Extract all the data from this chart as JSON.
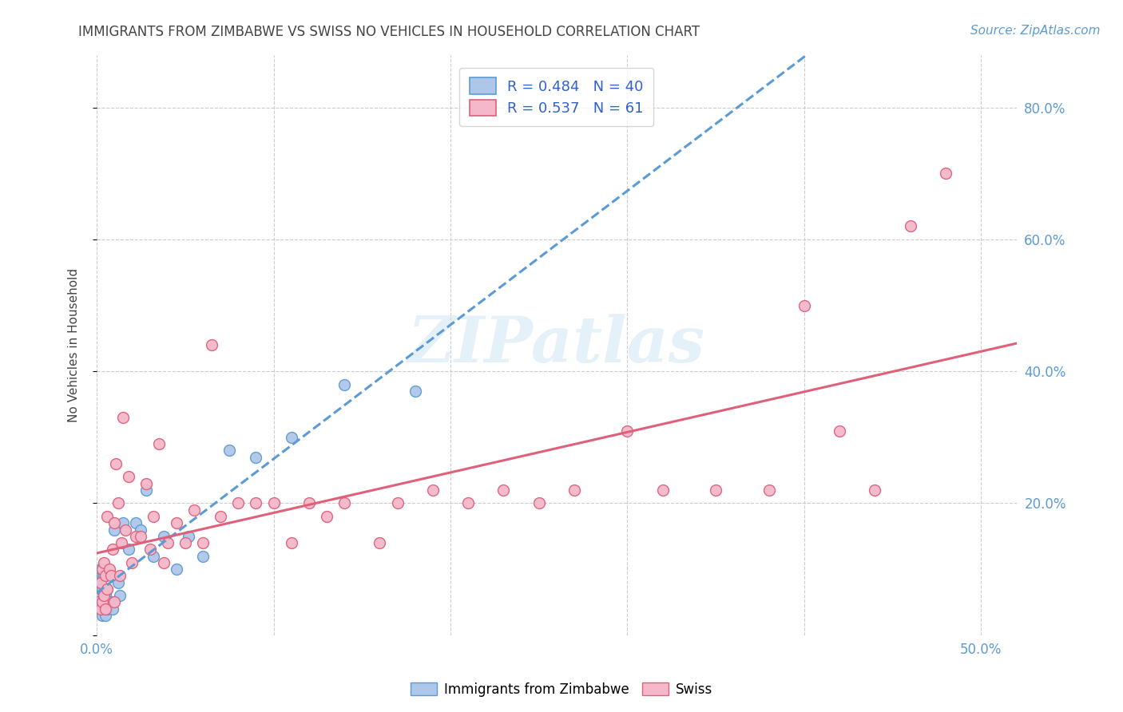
{
  "title": "IMMIGRANTS FROM ZIMBABWE VS SWISS NO VEHICLES IN HOUSEHOLD CORRELATION CHART",
  "source": "Source: ZipAtlas.com",
  "ylabel": "No Vehicles in Household",
  "xlim": [
    0.0,
    0.52
  ],
  "ylim": [
    0.0,
    0.88
  ],
  "xticks": [
    0.0,
    0.1,
    0.2,
    0.3,
    0.4,
    0.5
  ],
  "yticks": [
    0.0,
    0.2,
    0.4,
    0.6,
    0.8
  ],
  "ytick_labels": [
    "",
    "20.0%",
    "40.0%",
    "60.0%",
    "80.0%"
  ],
  "xtick_labels": [
    "0.0%",
    "",
    "",
    "",
    "",
    "50.0%"
  ],
  "background_color": "#ffffff",
  "grid_color": "#cccccc",
  "title_color": "#444444",
  "axis_label_color": "#444444",
  "tick_color": "#5b9bd5",
  "source_color": "#5b9bd5",
  "watermark": "ZIPatlas",
  "series": [
    {
      "name": "Immigrants from Zimbabwe",
      "color": "#aec6e8",
      "edge_color": "#5b9bd5",
      "line_color": "#5b9bd5",
      "line_style": "--",
      "R": 0.484,
      "N": 40,
      "x": [
        0.001,
        0.001,
        0.001,
        0.002,
        0.002,
        0.002,
        0.002,
        0.003,
        0.003,
        0.003,
        0.003,
        0.004,
        0.004,
        0.004,
        0.005,
        0.005,
        0.005,
        0.006,
        0.006,
        0.007,
        0.008,
        0.009,
        0.01,
        0.012,
        0.013,
        0.015,
        0.018,
        0.022,
        0.025,
        0.028,
        0.032,
        0.038,
        0.045,
        0.052,
        0.06,
        0.075,
        0.09,
        0.11,
        0.14,
        0.18
      ],
      "y": [
        0.04,
        0.06,
        0.08,
        0.04,
        0.06,
        0.07,
        0.1,
        0.03,
        0.05,
        0.07,
        0.09,
        0.04,
        0.06,
        0.09,
        0.03,
        0.06,
        0.09,
        0.04,
        0.07,
        0.05,
        0.05,
        0.04,
        0.16,
        0.08,
        0.06,
        0.17,
        0.13,
        0.17,
        0.16,
        0.22,
        0.12,
        0.15,
        0.1,
        0.15,
        0.12,
        0.28,
        0.27,
        0.3,
        0.38,
        0.37
      ]
    },
    {
      "name": "Swiss",
      "color": "#f4b8ca",
      "edge_color": "#e0607a",
      "line_color": "#e0607a",
      "line_style": "-",
      "R": 0.537,
      "N": 61,
      "x": [
        0.001,
        0.002,
        0.002,
        0.003,
        0.003,
        0.004,
        0.004,
        0.005,
        0.005,
        0.006,
        0.006,
        0.007,
        0.008,
        0.009,
        0.01,
        0.01,
        0.011,
        0.012,
        0.013,
        0.014,
        0.015,
        0.016,
        0.018,
        0.02,
        0.022,
        0.025,
        0.028,
        0.03,
        0.032,
        0.035,
        0.038,
        0.04,
        0.045,
        0.05,
        0.055,
        0.06,
        0.065,
        0.07,
        0.08,
        0.09,
        0.1,
        0.11,
        0.12,
        0.13,
        0.14,
        0.16,
        0.17,
        0.19,
        0.21,
        0.23,
        0.25,
        0.27,
        0.3,
        0.32,
        0.35,
        0.38,
        0.4,
        0.42,
        0.44,
        0.46,
        0.48
      ],
      "y": [
        0.05,
        0.04,
        0.08,
        0.05,
        0.1,
        0.06,
        0.11,
        0.04,
        0.09,
        0.07,
        0.18,
        0.1,
        0.09,
        0.13,
        0.05,
        0.17,
        0.26,
        0.2,
        0.09,
        0.14,
        0.33,
        0.16,
        0.24,
        0.11,
        0.15,
        0.15,
        0.23,
        0.13,
        0.18,
        0.29,
        0.11,
        0.14,
        0.17,
        0.14,
        0.19,
        0.14,
        0.44,
        0.18,
        0.2,
        0.2,
        0.2,
        0.14,
        0.2,
        0.18,
        0.2,
        0.14,
        0.2,
        0.22,
        0.2,
        0.22,
        0.2,
        0.22,
        0.31,
        0.22,
        0.22,
        0.22,
        0.5,
        0.31,
        0.22,
        0.62,
        0.7
      ]
    }
  ]
}
